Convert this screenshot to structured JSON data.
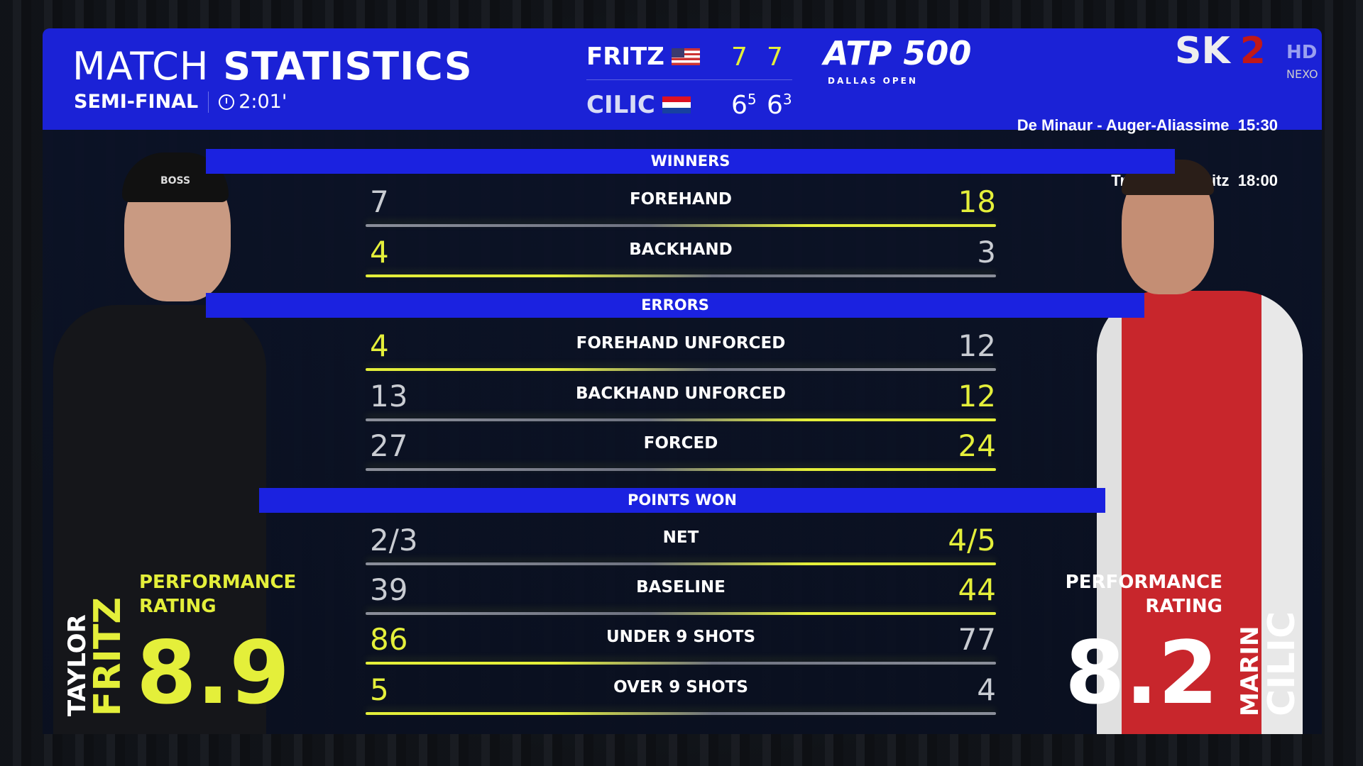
{
  "colors": {
    "header_blue": "#1b22d6",
    "highlight_yellow": "#e4ef3a",
    "panel": "#0b1226"
  },
  "header": {
    "title_light": "MATCH",
    "title_bold": "STATISTICS",
    "round": "SEMI-FINAL",
    "duration": "2:01'",
    "clock_icon": "clock-icon"
  },
  "score": {
    "players": [
      {
        "name": "FRITZ",
        "flag": "usa-flag",
        "sets": [
          "7",
          "7"
        ],
        "tiebreaks": [
          "",
          ""
        ]
      },
      {
        "name": "CILIC",
        "flag": "croatia-flag",
        "sets": [
          "6",
          "6"
        ],
        "tiebreaks": [
          "5",
          "3"
        ]
      }
    ]
  },
  "logos": {
    "tournament": "ATP 500",
    "tournament_sub": "DALLAS OPEN",
    "channel": "SK",
    "channel_num": "2",
    "hd": "HD",
    "sponsor": "NEXO"
  },
  "ticker": {
    "line1": "De Minaur - Auger-Aliassime  15:30",
    "line2": "Trier - Chemnitz  18:00"
  },
  "sections": [
    {
      "title": "WINNERS",
      "rows": [
        {
          "label": "FOREHAND",
          "left": "7",
          "right": "18",
          "highlight": "right"
        },
        {
          "label": "BACKHAND",
          "left": "4",
          "right": "3",
          "highlight": "left"
        }
      ]
    },
    {
      "title": "ERRORS",
      "rows": [
        {
          "label": "FOREHAND UNFORCED",
          "left": "4",
          "right": "12",
          "highlight": "left"
        },
        {
          "label": "BACKHAND UNFORCED",
          "left": "13",
          "right": "12",
          "highlight": "right"
        },
        {
          "label": "FORCED",
          "left": "27",
          "right": "24",
          "highlight": "right"
        }
      ]
    },
    {
      "title": "POINTS WON",
      "rows": [
        {
          "label": "NET",
          "left": "2/3",
          "right": "4/5",
          "highlight": "right"
        },
        {
          "label": "BASELINE",
          "left": "39",
          "right": "44",
          "highlight": "right"
        },
        {
          "label": "UNDER 9 SHOTS",
          "left": "86",
          "right": "77",
          "highlight": "left"
        },
        {
          "label": "OVER 9 SHOTS",
          "left": "5",
          "right": "4",
          "highlight": "left"
        }
      ]
    }
  ],
  "left_player": {
    "first": "TAYLOR",
    "last": "FRITZ",
    "perf_label_1": "PERFORMANCE",
    "perf_label_2": "RATING",
    "rating": "8.9",
    "cap_text": "BOSS"
  },
  "right_player": {
    "first": "MARIN",
    "last": "CILIC",
    "perf_label_1": "PERFORMANCE",
    "perf_label_2": "RATING",
    "rating": "8.2"
  }
}
